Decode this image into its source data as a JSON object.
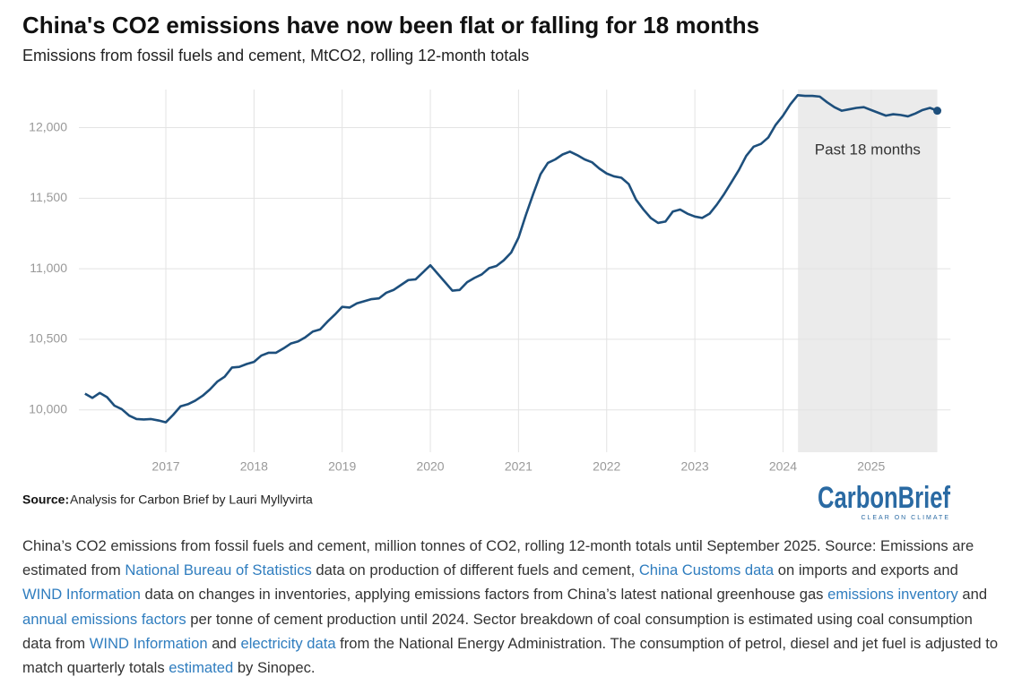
{
  "chart_data": {
    "type": "line",
    "title": "China's CO2 emissions have now been flat or falling for 18 months",
    "subtitle": "Emissions from fossil fuels and cement, MtCO2, rolling 12-month totals",
    "color": "#1d4f7c",
    "grid": true,
    "end_marker": true,
    "xlim": [
      2016,
      2025.9
    ],
    "ylim": [
      9700,
      12270
    ],
    "xticks": [
      2017,
      2018,
      2019,
      2020,
      2021,
      2022,
      2023,
      2024,
      2025
    ],
    "yticks": [
      {
        "value": 10000,
        "label": "10,000"
      },
      {
        "value": 10500,
        "label": "10,500"
      },
      {
        "value": 11000,
        "label": "11,000"
      },
      {
        "value": 11500,
        "label": "11,500"
      },
      {
        "value": 12000,
        "label": "12,000"
      }
    ],
    "highlight": {
      "label": "Past 18 months",
      "x_range": [
        2024.17,
        2025.75
      ]
    },
    "x": [
      2016.083,
      2016.167,
      2016.25,
      2016.333,
      2016.417,
      2016.5,
      2016.583,
      2016.667,
      2016.75,
      2016.833,
      2016.917,
      2017.0,
      2017.083,
      2017.167,
      2017.25,
      2017.333,
      2017.417,
      2017.5,
      2017.583,
      2017.667,
      2017.75,
      2017.833,
      2017.917,
      2018.0,
      2018.083,
      2018.167,
      2018.25,
      2018.333,
      2018.417,
      2018.5,
      2018.583,
      2018.667,
      2018.75,
      2018.833,
      2018.917,
      2019.0,
      2019.083,
      2019.167,
      2019.25,
      2019.333,
      2019.417,
      2019.5,
      2019.583,
      2019.667,
      2019.75,
      2019.833,
      2019.917,
      2020.0,
      2020.083,
      2020.167,
      2020.25,
      2020.333,
      2020.417,
      2020.5,
      2020.583,
      2020.667,
      2020.75,
      2020.833,
      2020.917,
      2021.0,
      2021.083,
      2021.167,
      2021.25,
      2021.333,
      2021.417,
      2021.5,
      2021.583,
      2021.667,
      2021.75,
      2021.833,
      2021.917,
      2022.0,
      2022.083,
      2022.167,
      2022.25,
      2022.333,
      2022.417,
      2022.5,
      2022.583,
      2022.667,
      2022.75,
      2022.833,
      2022.917,
      2023.0,
      2023.083,
      2023.167,
      2023.25,
      2023.333,
      2023.417,
      2023.5,
      2023.583,
      2023.667,
      2023.75,
      2023.833,
      2023.917,
      2024.0,
      2024.083,
      2024.167,
      2024.25,
      2024.333,
      2024.417,
      2024.5,
      2024.583,
      2024.667,
      2024.75,
      2024.833,
      2024.917,
      2025.0,
      2025.083,
      2025.167,
      2025.25,
      2025.333,
      2025.417,
      2025.5,
      2025.583,
      2025.667,
      2025.75
    ],
    "values": [
      10115,
      10085,
      10120,
      10090,
      10030,
      10005,
      9960,
      9935,
      9932,
      9935,
      9925,
      9912,
      9965,
      10025,
      10040,
      10065,
      10100,
      10145,
      10200,
      10235,
      10300,
      10305,
      10325,
      10340,
      10385,
      10405,
      10405,
      10435,
      10470,
      10485,
      10515,
      10555,
      10570,
      10625,
      10675,
      10730,
      10725,
      10755,
      10770,
      10785,
      10790,
      10830,
      10850,
      10885,
      10920,
      10925,
      10975,
      11025,
      10965,
      10905,
      10845,
      10850,
      10905,
      10935,
      10960,
      11005,
      11020,
      11060,
      11115,
      11220,
      11380,
      11530,
      11670,
      11750,
      11775,
      11810,
      11830,
      11805,
      11775,
      11755,
      11710,
      11675,
      11655,
      11645,
      11600,
      11490,
      11420,
      11360,
      11325,
      11335,
      11405,
      11420,
      11390,
      11370,
      11360,
      11390,
      11455,
      11530,
      11615,
      11700,
      11800,
      11865,
      11885,
      11930,
      12020,
      12085,
      12165,
      12230,
      12225,
      12225,
      12220,
      12180,
      12145,
      12120,
      12130,
      12140,
      12145,
      12125,
      12105,
      12085,
      12095,
      12090,
      12080,
      12100,
      12125,
      12140,
      12120
    ]
  },
  "source": {
    "label": "Source:",
    "text": "Analysis for Carbon Brief by Lauri Myllyvirta"
  },
  "logo": {
    "name": "CarbonBrief",
    "tagline": "CLEAR ON CLIMATE"
  },
  "caption": [
    {
      "text": "China’s CO2 emissions from fossil fuels and cement, million tonnes of CO2, rolling 12-month totals until September 2025. Source: Emissions are estimated from ",
      "link": false
    },
    {
      "text": "National Bureau of Statistics",
      "link": true
    },
    {
      "text": " data on production of different fuels and cement, ",
      "link": false
    },
    {
      "text": "China Customs data",
      "link": true
    },
    {
      "text": " on imports and exports and ",
      "link": false
    },
    {
      "text": "WIND Information",
      "link": true
    },
    {
      "text": " data on changes in inventories, applying emissions factors from China’s latest national greenhouse gas ",
      "link": false
    },
    {
      "text": "emissions inventory",
      "link": true
    },
    {
      "text": " and ",
      "link": false
    },
    {
      "text": "annual emissions factors",
      "link": true
    },
    {
      "text": " per tonne of cement production until 2024. Sector breakdown of coal consumption is estimated using coal consumption data from ",
      "link": false
    },
    {
      "text": "WIND Information",
      "link": true
    },
    {
      "text": " and ",
      "link": false
    },
    {
      "text": "electricity data",
      "link": true
    },
    {
      "text": " from the National Energy Administration. The consumption of petrol, diesel and jet fuel is adjusted to match quarterly totals ",
      "link": false
    },
    {
      "text": "estimated",
      "link": true
    },
    {
      "text": " by Sinopec.",
      "link": false
    }
  ]
}
